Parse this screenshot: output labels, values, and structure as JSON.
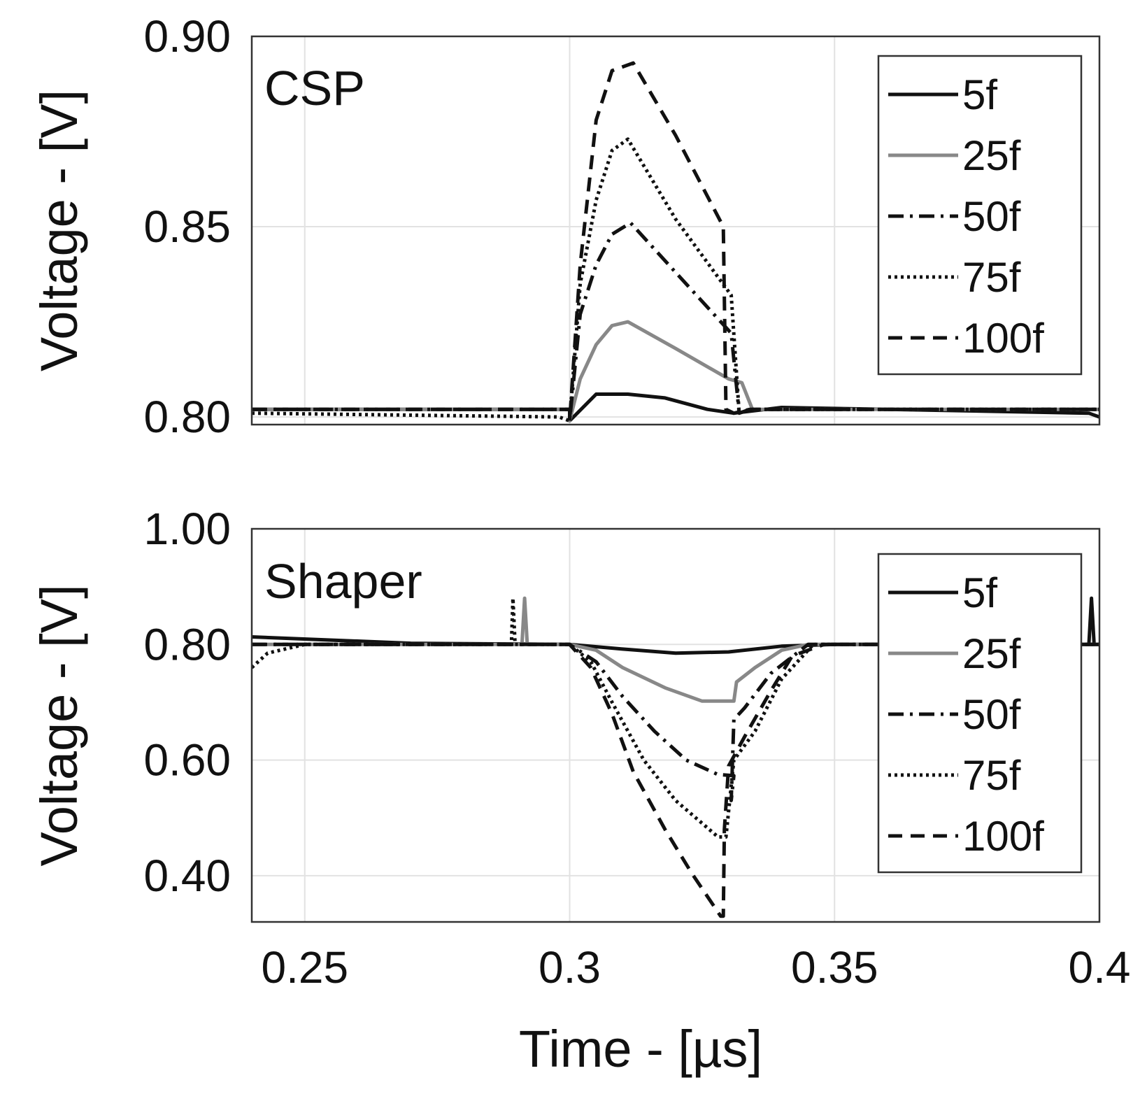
{
  "figure": {
    "xlabel": "Time - [µs]",
    "x_ticks": [
      "0.25",
      "0.3",
      "0.35",
      "0.4"
    ]
  },
  "chart_data": [
    {
      "type": "line",
      "title": "CSP",
      "ylabel": "Voltage - [V]",
      "xlabel": "Time - [µs]",
      "xlim": [
        0.24,
        0.4
      ],
      "ylim": [
        0.798,
        0.9
      ],
      "x_ticks": [
        0.25,
        0.3,
        0.35,
        0.4
      ],
      "y_ticks": [
        0.8,
        0.85,
        0.9
      ],
      "y_tick_labels": [
        "0.80",
        "0.85",
        "0.90"
      ],
      "grid": true,
      "legend": {
        "position": "top-right",
        "entries": [
          "5f",
          "25f",
          "50f",
          "75f",
          "100f"
        ]
      },
      "series": [
        {
          "name": "5f",
          "color": "#111111",
          "dash": "solid",
          "x": [
            0.24,
            0.3,
            0.3,
            0.305,
            0.311,
            0.318,
            0.326,
            0.331,
            0.34,
            0.36,
            0.398,
            0.4
          ],
          "y": [
            0.802,
            0.802,
            0.799,
            0.806,
            0.806,
            0.805,
            0.802,
            0.801,
            0.8025,
            0.802,
            0.801,
            0.8
          ]
        },
        {
          "name": "25f",
          "color": "#888888",
          "dash": "solid",
          "x": [
            0.24,
            0.3,
            0.3,
            0.302,
            0.305,
            0.308,
            0.311,
            0.32,
            0.33,
            0.3325,
            0.3345,
            0.336,
            0.36,
            0.4
          ],
          "y": [
            0.802,
            0.802,
            0.799,
            0.81,
            0.819,
            0.824,
            0.825,
            0.818,
            0.81,
            0.809,
            0.802,
            0.802,
            0.802,
            0.802
          ]
        },
        {
          "name": "50f",
          "color": "#111111",
          "dash": "dashdot",
          "x": [
            0.24,
            0.3,
            0.3,
            0.302,
            0.305,
            0.308,
            0.3115,
            0.32,
            0.3305,
            0.332,
            0.334,
            0.36,
            0.4
          ],
          "y": [
            0.802,
            0.802,
            0.799,
            0.827,
            0.84,
            0.848,
            0.851,
            0.838,
            0.822,
            0.801,
            0.802,
            0.802,
            0.802
          ]
        },
        {
          "name": "75f",
          "color": "#111111",
          "dash": "dotted",
          "x": [
            0.24,
            0.298,
            0.3,
            0.302,
            0.305,
            0.308,
            0.311,
            0.32,
            0.3305,
            0.332,
            0.334,
            0.36,
            0.4
          ],
          "y": [
            0.801,
            0.8,
            0.799,
            0.835,
            0.857,
            0.87,
            0.873,
            0.852,
            0.832,
            0.801,
            0.802,
            0.802,
            0.802
          ]
        },
        {
          "name": "100f",
          "color": "#111111",
          "dash": "dashed",
          "x": [
            0.24,
            0.3,
            0.3,
            0.302,
            0.305,
            0.308,
            0.312,
            0.32,
            0.329,
            0.3295,
            0.331,
            0.334,
            0.36,
            0.4
          ],
          "y": [
            0.802,
            0.802,
            0.799,
            0.84,
            0.878,
            0.891,
            0.893,
            0.874,
            0.85,
            0.802,
            0.801,
            0.802,
            0.802,
            0.802
          ]
        }
      ]
    },
    {
      "type": "line",
      "title": "Shaper",
      "ylabel": "Voltage - [V]",
      "xlabel": "Time - [µs]",
      "xlim": [
        0.24,
        0.4
      ],
      "ylim": [
        0.32,
        1.0
      ],
      "x_ticks": [
        0.25,
        0.3,
        0.35,
        0.4
      ],
      "y_ticks": [
        0.4,
        0.6,
        0.8,
        1.0
      ],
      "y_tick_labels": [
        "0.40",
        "0.60",
        "0.80",
        "1.00"
      ],
      "grid": true,
      "legend": {
        "position": "top-right",
        "entries": [
          "5f",
          "25f",
          "50f",
          "75f",
          "100f"
        ]
      },
      "series": [
        {
          "name": "5f",
          "color": "#111111",
          "dash": "solid",
          "x": [
            0.24,
            0.27,
            0.3,
            0.31,
            0.32,
            0.33,
            0.34,
            0.35,
            0.398,
            0.3985,
            0.399,
            0.4
          ],
          "y": [
            0.813,
            0.802,
            0.8,
            0.792,
            0.785,
            0.787,
            0.797,
            0.8,
            0.8,
            0.88,
            0.8,
            0.8
          ]
        },
        {
          "name": "25f",
          "color": "#888888",
          "dash": "solid",
          "x": [
            0.24,
            0.26,
            0.291,
            0.2915,
            0.292,
            0.3,
            0.305,
            0.31,
            0.318,
            0.325,
            0.331,
            0.3315,
            0.335,
            0.34,
            0.345,
            0.4
          ],
          "y": [
            0.8,
            0.8,
            0.8,
            0.88,
            0.8,
            0.8,
            0.79,
            0.76,
            0.725,
            0.702,
            0.702,
            0.735,
            0.76,
            0.79,
            0.8,
            0.8
          ]
        },
        {
          "name": "50f",
          "color": "#111111",
          "dash": "dashdot",
          "x": [
            0.24,
            0.3,
            0.305,
            0.31,
            0.316,
            0.322,
            0.328,
            0.331,
            0.3305,
            0.331,
            0.333,
            0.338,
            0.345,
            0.4
          ],
          "y": [
            0.8,
            0.8,
            0.77,
            0.71,
            0.65,
            0.6,
            0.575,
            0.573,
            0.53,
            0.67,
            0.69,
            0.75,
            0.8,
            0.8
          ]
        },
        {
          "name": "75f",
          "color": "#111111",
          "dash": "dotted",
          "x": [
            0.24,
            0.243,
            0.25,
            0.289,
            0.2893,
            0.2897,
            0.3,
            0.304,
            0.308,
            0.314,
            0.32,
            0.328,
            0.3295,
            0.331,
            0.335,
            0.34,
            0.346,
            0.4
          ],
          "y": [
            0.76,
            0.785,
            0.8,
            0.8,
            0.88,
            0.8,
            0.8,
            0.77,
            0.7,
            0.6,
            0.53,
            0.467,
            0.467,
            0.6,
            0.65,
            0.74,
            0.8,
            0.8
          ]
        },
        {
          "name": "100f",
          "color": "#111111",
          "dash": "dashed",
          "x": [
            0.24,
            0.3,
            0.304,
            0.308,
            0.312,
            0.318,
            0.323,
            0.3285,
            0.329,
            0.3292,
            0.33,
            0.333,
            0.338,
            0.342,
            0.348,
            0.4
          ],
          "y": [
            0.8,
            0.8,
            0.76,
            0.68,
            0.58,
            0.48,
            0.405,
            0.33,
            0.33,
            0.48,
            0.59,
            0.64,
            0.72,
            0.78,
            0.8,
            0.8
          ]
        }
      ]
    }
  ]
}
